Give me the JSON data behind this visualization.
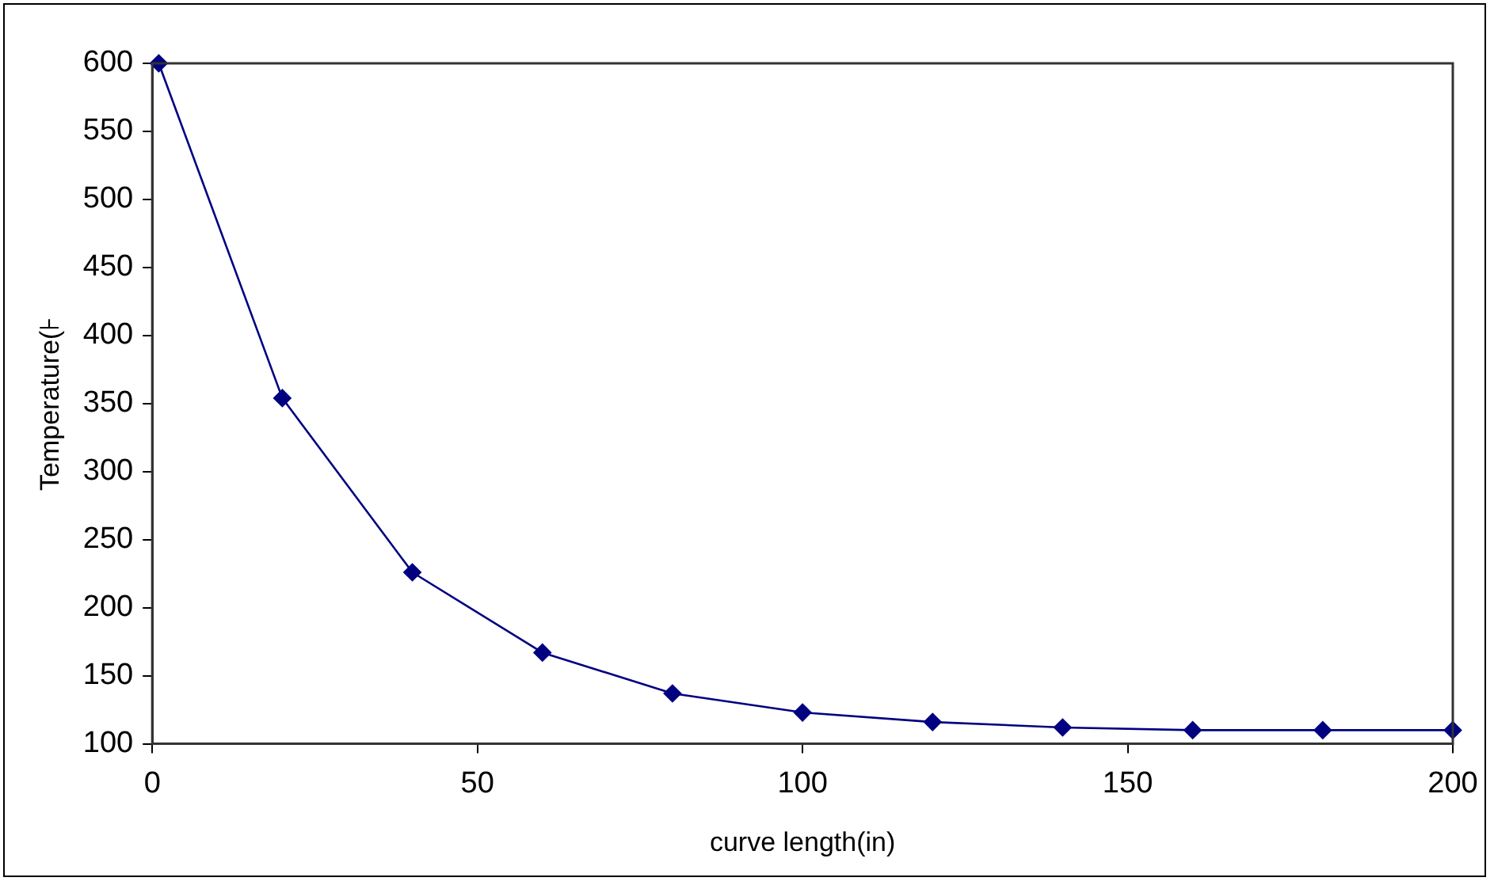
{
  "chart_data": {
    "type": "line",
    "xlabel": "curve length(in)",
    "ylabel": "Temperature(⊦",
    "x": [
      1,
      20,
      40,
      60,
      80,
      100,
      120,
      140,
      160,
      180,
      200
    ],
    "series": [
      {
        "color": "#000080",
        "values": [
          600,
          354,
          226,
          167,
          137,
          123,
          116,
          112,
          110,
          110,
          110
        ]
      }
    ],
    "xlim": [
      0,
      200
    ],
    "xticks": [
      0,
      50,
      100,
      150,
      200
    ],
    "ylim": [
      100,
      600
    ],
    "yticks": [
      100,
      150,
      200,
      250,
      300,
      350,
      400,
      450,
      500,
      550,
      600
    ],
    "grid": false,
    "legend": false,
    "marker": "diamond",
    "line_style": "solid"
  }
}
